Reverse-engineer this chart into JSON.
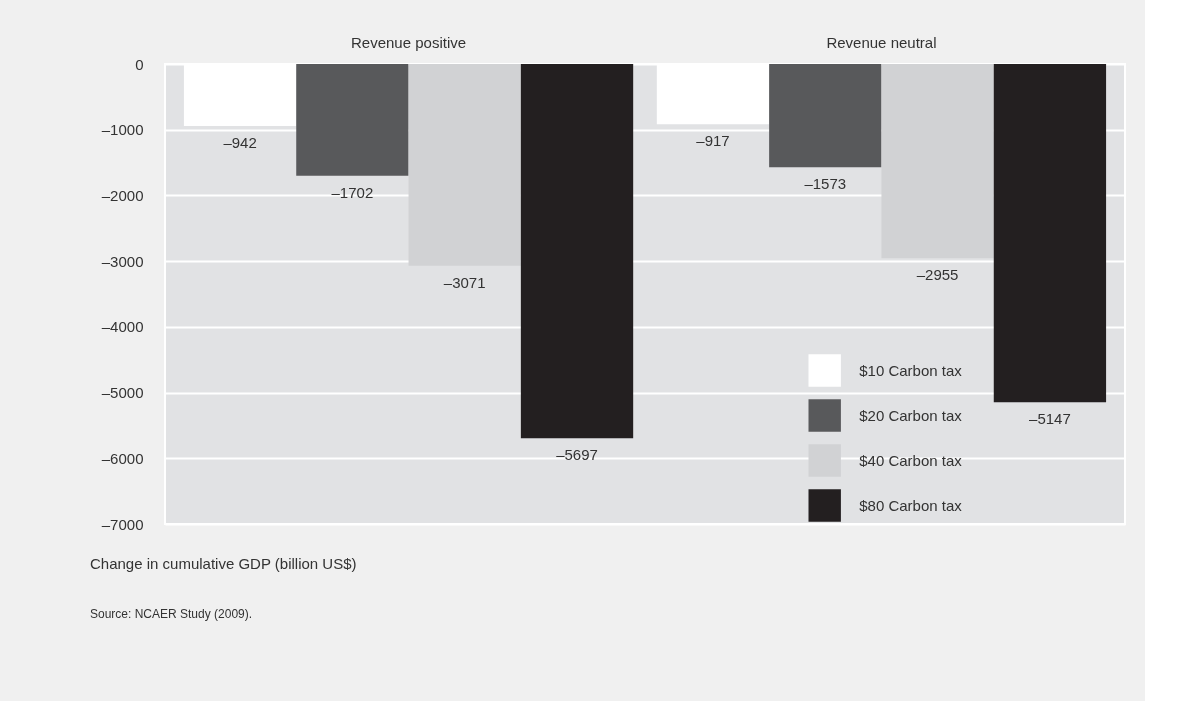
{
  "chart_data": {
    "type": "bar",
    "categories": [
      "Revenue positive",
      "Revenue neutral"
    ],
    "series": [
      {
        "name": "$10 Carbon tax",
        "color": "#ffffff",
        "values": [
          -942,
          -917
        ],
        "value_labels": [
          "–942",
          "–917"
        ]
      },
      {
        "name": "$20 Carbon tax",
        "color": "#58595b",
        "values": [
          -1702,
          -1573
        ],
        "value_labels": [
          "–1702",
          "–1573"
        ]
      },
      {
        "name": "$40 Carbon tax",
        "color": "#d1d2d4",
        "values": [
          -3071,
          -2955
        ],
        "value_labels": [
          "–3071",
          "–2955"
        ]
      },
      {
        "name": "$80 Carbon tax",
        "color": "#231f20",
        "values": [
          -5697,
          -5147
        ],
        "value_labels": [
          "–5697",
          "–5147"
        ]
      }
    ],
    "ylabel": "Change in cumulative GDP (billion US$)",
    "annotations": [
      "Source: NCAER Study (2009)."
    ],
    "ylim": [
      -7000,
      0
    ],
    "yticks": [
      0,
      {
        "value": -1000,
        "label": "–1000"
      },
      {
        "value": -2000,
        "label": "–2000"
      },
      {
        "value": -3000,
        "label": "–3000"
      },
      {
        "value": -4000,
        "label": "–4000"
      },
      {
        "value": -5000,
        "label": "–5000"
      },
      {
        "value": -6000,
        "label": "–6000"
      },
      {
        "value": -7000,
        "label": "–7000"
      }
    ],
    "grid": "y",
    "legend": "bottom right"
  }
}
